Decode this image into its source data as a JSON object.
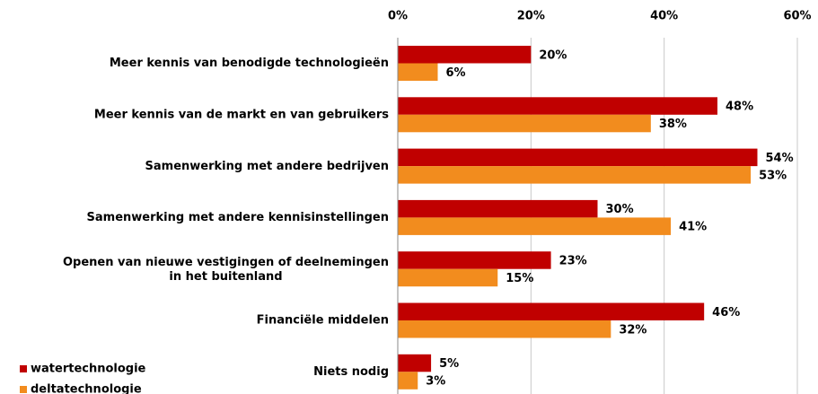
{
  "chart_data": {
    "type": "bar",
    "orientation": "horizontal",
    "categories": [
      "Meer kennis van benodigde technologieën",
      "Meer kennis van de markt en van gebruikers",
      "Samenwerking met andere bedrijven",
      "Samenwerking met andere kennisinstellingen",
      "Openen van nieuwe vestigingen of deelnemingen\nin het buitenland",
      "Financiële middelen",
      "Niets nodig"
    ],
    "series": [
      {
        "name": "watertechnologie",
        "color": "#c00000",
        "values": [
          20,
          48,
          54,
          30,
          23,
          46,
          5
        ],
        "value_labels": [
          "20%",
          "48%",
          "54%",
          "30%",
          "23%",
          "46%",
          "5%"
        ]
      },
      {
        "name": "deltatechnologie",
        "color": "#f28c1e",
        "values": [
          6,
          38,
          53,
          41,
          15,
          32,
          3
        ],
        "value_labels": [
          "6%",
          "38%",
          "53%",
          "41%",
          "15%",
          "32%",
          "3%"
        ]
      }
    ],
    "xlim": [
      0,
      60
    ],
    "xticks": [
      {
        "value": 0,
        "label": "0%"
      },
      {
        "value": 20,
        "label": "20%"
      },
      {
        "value": 40,
        "label": "40%"
      },
      {
        "value": 60,
        "label": "60%"
      }
    ],
    "grid": true,
    "legend": "bottom-left"
  }
}
